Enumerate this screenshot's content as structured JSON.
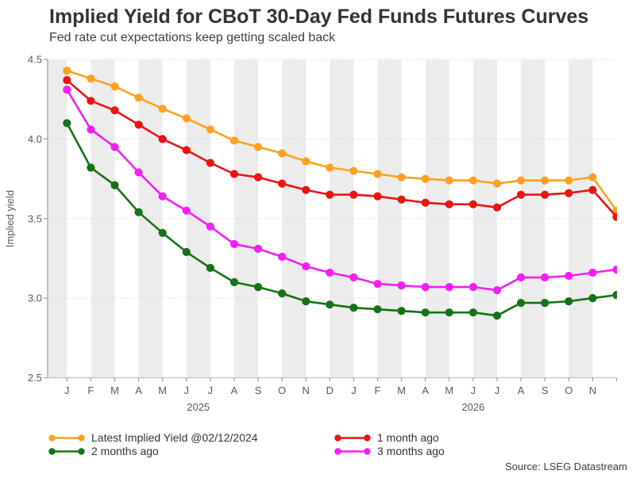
{
  "header": {
    "title": "Implied Yield for CBoT 30-Day Fed Funds Futures Curves",
    "subtitle": "Fed rate cut expectations keep getting scaled back"
  },
  "footer": {
    "source": "Source: LSEG Datastream"
  },
  "chart_data": {
    "type": "line",
    "title": "Implied Yield for CBoT 30-Day Fed Funds Futures Curves",
    "subtitle": "Fed rate cut expectations keep getting scaled back",
    "ylabel": "Implied yield",
    "ylim": [
      2.5,
      4.5
    ],
    "ytick_labels": [
      "4.5",
      "4.0",
      "3.5",
      "3.0",
      "2.5"
    ],
    "grid": "dotted horizontal gridlines at y ticks; alternating light-gray monthly bands",
    "legend_position": "bottom",
    "x_labels": [
      "J",
      "F",
      "M",
      "A",
      "M",
      "J",
      "J",
      "A",
      "S",
      "O",
      "N",
      "D",
      "J",
      "F",
      "M",
      "A",
      "M",
      "J",
      "J",
      "A",
      "S",
      "O",
      "N",
      ""
    ],
    "years": [
      {
        "label": "2025",
        "month_index": 5.5
      },
      {
        "label": "2026",
        "month_index": 17.0
      }
    ],
    "series": [
      {
        "name": "Latest Implied Yield @02/12/2024",
        "color": "#FFA11E",
        "values": [
          4.43,
          4.38,
          4.33,
          4.26,
          4.19,
          4.13,
          4.06,
          3.99,
          3.95,
          3.91,
          3.86,
          3.82,
          3.8,
          3.78,
          3.76,
          3.75,
          3.74,
          3.74,
          3.72,
          3.74,
          3.74,
          3.74,
          3.76,
          3.55
        ]
      },
      {
        "name": "1 month ago",
        "color": "#EC1313",
        "values": [
          4.37,
          4.24,
          4.18,
          4.09,
          4.0,
          3.93,
          3.85,
          3.78,
          3.76,
          3.72,
          3.68,
          3.65,
          3.65,
          3.64,
          3.62,
          3.6,
          3.59,
          3.59,
          3.57,
          3.65,
          3.65,
          3.66,
          3.68,
          3.51
        ]
      },
      {
        "name": "2 months ago",
        "color": "#147314",
        "values": [
          4.1,
          3.82,
          3.71,
          3.54,
          3.41,
          3.29,
          3.19,
          3.1,
          3.07,
          3.03,
          2.98,
          2.96,
          2.94,
          2.93,
          2.92,
          2.91,
          2.91,
          2.91,
          2.89,
          2.97,
          2.97,
          2.98,
          3.0,
          3.02
        ]
      },
      {
        "name": "3 months ago",
        "color": "#F41DF4",
        "values": [
          4.31,
          4.06,
          3.95,
          3.79,
          3.64,
          3.55,
          3.45,
          3.34,
          3.31,
          3.26,
          3.2,
          3.16,
          3.13,
          3.09,
          3.08,
          3.07,
          3.07,
          3.07,
          3.05,
          3.13,
          3.13,
          3.14,
          3.16,
          3.18
        ]
      }
    ]
  },
  "style": {
    "band_color": "#ececec",
    "grid_color": "#d6d6d6",
    "axis_color": "#c9c9c9",
    "tick_color": "#9a9a9a",
    "tick_text_color": "#595959"
  }
}
